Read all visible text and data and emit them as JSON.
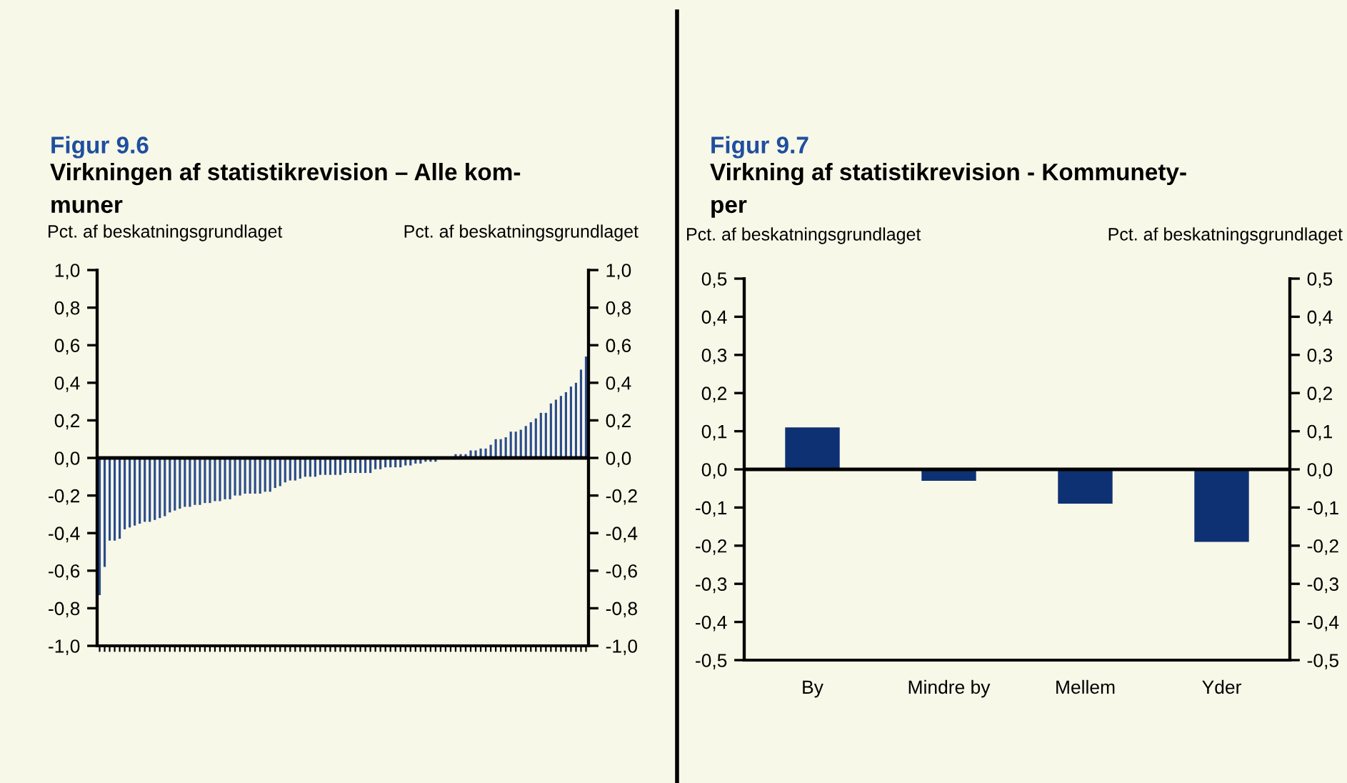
{
  "chart_data": [
    {
      "type": "bar",
      "title": "Figur 9.6",
      "subtitle": "Virkningen af statistikrevision – Alle kom-\nmuner",
      "ylabel": "Pct. af beskatningsgrundlaget",
      "y2label": "Pct. af beskatningsgrundlaget",
      "categories": [
        null,
        null,
        null,
        null,
        null,
        null,
        null,
        null,
        null,
        null,
        null,
        null,
        null,
        null,
        null,
        null,
        null,
        null,
        null,
        null,
        null,
        null,
        null,
        null,
        null,
        null,
        null,
        null,
        null,
        null,
        null,
        null,
        null,
        null,
        null,
        null,
        null,
        null,
        null,
        null,
        null,
        null,
        null,
        null,
        null,
        null,
        null,
        null,
        null,
        null,
        null,
        null,
        null,
        null,
        null,
        null,
        null,
        null,
        null,
        null,
        null,
        null,
        null,
        null,
        null,
        null,
        null,
        null,
        null,
        null,
        null,
        null,
        null,
        null,
        null,
        null,
        null,
        null,
        null,
        null,
        null,
        null,
        null,
        null,
        null,
        null,
        null,
        null,
        null,
        null,
        null,
        null,
        null,
        null,
        null,
        null,
        null,
        null
      ],
      "values": [
        -0.73,
        -0.58,
        -0.44,
        -0.44,
        -0.43,
        -0.38,
        -0.37,
        -0.36,
        -0.35,
        -0.34,
        -0.34,
        -0.33,
        -0.32,
        -0.31,
        -0.29,
        -0.28,
        -0.27,
        -0.26,
        -0.26,
        -0.25,
        -0.25,
        -0.24,
        -0.24,
        -0.23,
        -0.23,
        -0.22,
        -0.22,
        -0.2,
        -0.2,
        -0.19,
        -0.19,
        -0.19,
        -0.19,
        -0.18,
        -0.18,
        -0.16,
        -0.15,
        -0.13,
        -0.12,
        -0.12,
        -0.11,
        -0.1,
        -0.1,
        -0.1,
        -0.09,
        -0.09,
        -0.09,
        -0.09,
        -0.09,
        -0.08,
        -0.08,
        -0.08,
        -0.08,
        -0.08,
        -0.08,
        -0.06,
        -0.06,
        -0.05,
        -0.05,
        -0.05,
        -0.05,
        -0.04,
        -0.04,
        -0.03,
        -0.03,
        -0.02,
        -0.02,
        -0.02,
        0,
        0,
        0,
        0.02,
        0.02,
        0.02,
        0.04,
        0.04,
        0.05,
        0.05,
        0.07,
        0.1,
        0.1,
        0.11,
        0.14,
        0.14,
        0.15,
        0.17,
        0.19,
        0.21,
        0.24,
        0.24,
        0.29,
        0.31,
        0.33,
        0.35,
        0.38,
        0.4,
        0.47,
        0.54
      ],
      "color": "#2b4c8c",
      "ylim": [
        -1.0,
        1.0
      ],
      "yticks": [
        {
          "value": -1.0,
          "label": "-1,0"
        },
        {
          "value": -0.8,
          "label": "-0,8"
        },
        {
          "value": -0.6,
          "label": "-0,6"
        },
        {
          "value": -0.4,
          "label": "-0,4"
        },
        {
          "value": -0.2,
          "label": "-0,2"
        },
        {
          "value": 0.0,
          "label": "0,0"
        },
        {
          "value": 0.2,
          "label": "0,2"
        },
        {
          "value": 0.4,
          "label": "0,4"
        },
        {
          "value": 0.6,
          "label": "0,6"
        },
        {
          "value": 0.8,
          "label": "0,8"
        },
        {
          "value": 1.0,
          "label": "1,0"
        }
      ],
      "y2lim": [
        -1.0,
        1.0
      ],
      "y2ticks": [
        {
          "value": -1.0,
          "label": "-1,0"
        },
        {
          "value": -0.8,
          "label": "-0,8"
        },
        {
          "value": -0.6,
          "label": "-0,6"
        },
        {
          "value": -0.4,
          "label": "-0,4"
        },
        {
          "value": -0.2,
          "label": "-0,2"
        },
        {
          "value": 0.0,
          "label": "0,0"
        },
        {
          "value": 0.2,
          "label": "0,2"
        },
        {
          "value": 0.4,
          "label": "0,4"
        },
        {
          "value": 0.6,
          "label": "0,6"
        },
        {
          "value": 0.8,
          "label": "0,8"
        },
        {
          "value": 1.0,
          "label": "1,0"
        }
      ],
      "ref_lines": [
        {
          "axis": "y",
          "value": 0.0,
          "color": "#000000"
        }
      ],
      "tick_labels": "y",
      "grid": false,
      "legend": false
    },
    {
      "type": "bar",
      "title": "Figur 9.7",
      "subtitle": "Virkning af statistikrevision - Kommunety-\nper",
      "ylabel": "Pct. af beskatningsgrundlaget",
      "y2label": "Pct. af beskatningsgrundlaget",
      "categories": [
        "By",
        "Mindre by",
        "Mellem",
        "Yder"
      ],
      "values": [
        0.11,
        -0.03,
        -0.09,
        -0.19
      ],
      "color": "#0e3173",
      "ylim": [
        -0.5,
        0.5
      ],
      "yticks": [
        {
          "value": -0.5,
          "label": "-0,5"
        },
        {
          "value": -0.4,
          "label": "-0,4"
        },
        {
          "value": -0.3,
          "label": "-0,3"
        },
        {
          "value": -0.2,
          "label": "-0,2"
        },
        {
          "value": -0.1,
          "label": "-0,1"
        },
        {
          "value": 0.0,
          "label": "0,0"
        },
        {
          "value": 0.1,
          "label": "0,1"
        },
        {
          "value": 0.2,
          "label": "0,2"
        },
        {
          "value": 0.3,
          "label": "0,3"
        },
        {
          "value": 0.4,
          "label": "0,4"
        },
        {
          "value": 0.5,
          "label": "0,5"
        }
      ],
      "y2lim": [
        -0.5,
        0.5
      ],
      "y2ticks": [
        {
          "value": -0.5,
          "label": "-0,5"
        },
        {
          "value": -0.4,
          "label": "-0,4"
        },
        {
          "value": -0.3,
          "label": "-0,3"
        },
        {
          "value": -0.2,
          "label": "-0,2"
        },
        {
          "value": -0.1,
          "label": "-0,1"
        },
        {
          "value": 0.0,
          "label": "0,0"
        },
        {
          "value": 0.1,
          "label": "0,1"
        },
        {
          "value": 0.2,
          "label": "0,2"
        },
        {
          "value": 0.3,
          "label": "0,3"
        },
        {
          "value": 0.4,
          "label": "0,4"
        },
        {
          "value": 0.5,
          "label": "0,5"
        }
      ],
      "ref_lines": [
        {
          "axis": "y",
          "value": 0.0,
          "color": "#000000"
        }
      ],
      "grid": false,
      "legend": false
    }
  ]
}
